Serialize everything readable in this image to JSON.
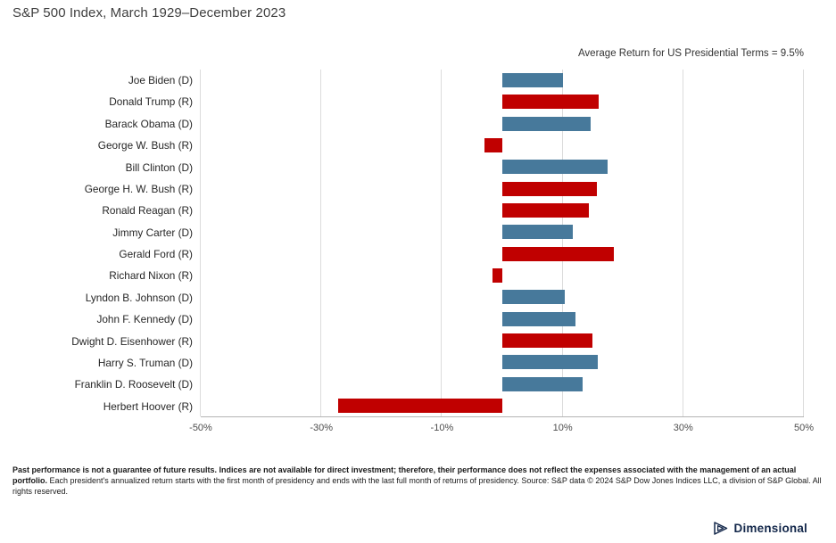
{
  "header": {
    "subtitle": "S&P 500 Index, March 1929–December 2023"
  },
  "annotation": "Average Return for US Presidential Terms = 9.5%",
  "chart_data": {
    "type": "bar",
    "orientation": "horizontal",
    "title": "S&P 500 Index, March 1929–December 2023",
    "categories": [
      "Joe Biden (D)",
      "Donald Trump (R)",
      "Barack Obama (D)",
      "George W. Bush (R)",
      "Bill Clinton (D)",
      "George H. W. Bush (R)",
      "Ronald Reagan (R)",
      "Jimmy Carter (D)",
      "Gerald Ford (R)",
      "Richard Nixon (R)",
      "Lyndon B. Johnson (D)",
      "John F. Kennedy (D)",
      "Dwight D. Eisenhower (R)",
      "Harry S. Truman (D)",
      "Franklin D. Roosevelt (D)",
      "Herbert Hoover (R)"
    ],
    "parties": [
      "D",
      "R",
      "D",
      "R",
      "D",
      "R",
      "R",
      "D",
      "R",
      "R",
      "D",
      "D",
      "R",
      "D",
      "D",
      "R"
    ],
    "values": [
      10.1,
      16.0,
      14.6,
      -3.0,
      17.5,
      15.7,
      14.3,
      11.7,
      18.5,
      -1.6,
      10.4,
      12.2,
      15.0,
      15.8,
      13.3,
      -27.2
    ],
    "colors": {
      "D": "#47799b",
      "R": "#c00000"
    },
    "xlim": [
      -50,
      50
    ],
    "x_tick_values": [
      -50,
      -30,
      -10,
      10,
      30,
      50
    ],
    "x_tick_labels": [
      "-50%",
      "-30%",
      "-10%",
      "10%",
      "30%",
      "50%"
    ],
    "grid": true,
    "average_return_pct": 9.5,
    "annotation": "Average Return for US Presidential Terms = 9.5%"
  },
  "footer": {
    "bold": "Past performance is not a guarantee of future results. Indices are not available for direct investment; therefore, their performance does not reflect the expenses associated with the management of an actual portfolio.",
    "regular": " Each president's annualized return starts with the first month of presidency and ends with the last full month of returns of presidency. Source: S&P data © 2024 S&P Dow Jones Indices LLC, a division of S&P Global. All rights reserved."
  },
  "logo": {
    "text": "Dimensional"
  }
}
